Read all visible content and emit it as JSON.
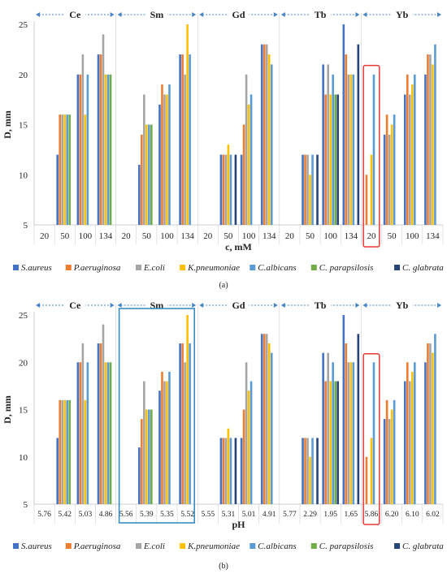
{
  "series": [
    {
      "name": "S.aureus",
      "color": "#4472C4"
    },
    {
      "name": "P.aeruginosa",
      "color": "#ED7D31"
    },
    {
      "name": "E.coli",
      "color": "#A5A5A5"
    },
    {
      "name": "K.pneumoniae",
      "color": "#FFC000"
    },
    {
      "name": "C.albicans",
      "color": "#5B9BD5"
    },
    {
      "name": "C. parapsilosis",
      "color": "#70AD47"
    },
    {
      "name": "C. glabrata",
      "color": "#264478"
    }
  ],
  "highlight_colors": {
    "red": "#E53935",
    "blue": "#2E86C1",
    "arrow": "#4A86C5"
  },
  "chart_data": [
    {
      "type": "bar",
      "panel_label": "(a)",
      "xlabel": "c, mM",
      "ylabel": "D, mm",
      "ylim": [
        5,
        25
      ],
      "yticks": [
        5,
        10,
        15,
        20,
        25
      ],
      "gridlines": false,
      "legend_position": "bottom",
      "groups": [
        {
          "name": "Ce",
          "categories": [
            "20",
            "50",
            "100",
            "134"
          ]
        },
        {
          "name": "Sm",
          "categories": [
            "20",
            "50",
            "100",
            "134"
          ]
        },
        {
          "name": "Gd",
          "categories": [
            "20",
            "50",
            "100",
            "134"
          ]
        },
        {
          "name": "Tb",
          "categories": [
            "20",
            "50",
            "100",
            "134"
          ]
        },
        {
          "name": "Yb",
          "categories": [
            "20",
            "50",
            "100",
            "134"
          ]
        }
      ],
      "highlight": [
        {
          "category_index": 16,
          "color": "red"
        }
      ],
      "values": [
        [
          0,
          0,
          0,
          0,
          0,
          0,
          0
        ],
        [
          12,
          16,
          16,
          16,
          16,
          16,
          0
        ],
        [
          20,
          20,
          22,
          16,
          20,
          0,
          0
        ],
        [
          22,
          22,
          24,
          20,
          20,
          20,
          0
        ],
        [
          0,
          0,
          0,
          0,
          0,
          0,
          0
        ],
        [
          11,
          14,
          18,
          15,
          15,
          15,
          0
        ],
        [
          17,
          19,
          18,
          18,
          19,
          0,
          0
        ],
        [
          22,
          22,
          20,
          25,
          22,
          0,
          0
        ],
        [
          0,
          0,
          0,
          0,
          0,
          0,
          0
        ],
        [
          12,
          12,
          12,
          13,
          12,
          0,
          12
        ],
        [
          12,
          15,
          20,
          17,
          18,
          0,
          0
        ],
        [
          23,
          23,
          23,
          22,
          21,
          0,
          0
        ],
        [
          0,
          0,
          0,
          0,
          0,
          0,
          0
        ],
        [
          12,
          12,
          12,
          10,
          12,
          0,
          12
        ],
        [
          21,
          18,
          21,
          18,
          20,
          18,
          18
        ],
        [
          25,
          22,
          20,
          20,
          20,
          0,
          23
        ],
        [
          0,
          10,
          0,
          12,
          20,
          0,
          0
        ],
        [
          14,
          16,
          14,
          15,
          16,
          0,
          0
        ],
        [
          18,
          20,
          18,
          19,
          20,
          0,
          0
        ],
        [
          20,
          22,
          22,
          21,
          23,
          0,
          0
        ]
      ]
    },
    {
      "type": "bar",
      "panel_label": "(b)",
      "xlabel": "pH",
      "ylabel": "D, mm",
      "ylim": [
        5,
        25
      ],
      "yticks": [
        5,
        10,
        15,
        20,
        25
      ],
      "gridlines": false,
      "legend_position": "bottom",
      "groups": [
        {
          "name": "Ce",
          "categories": [
            "5.76",
            "5.42",
            "5.03",
            "4.86"
          ]
        },
        {
          "name": "Sm",
          "categories": [
            "5.56",
            "5.39",
            "5.35",
            "5.52"
          ]
        },
        {
          "name": "Gd",
          "categories": [
            "5.55",
            "5.31",
            "5.01",
            "4.91"
          ]
        },
        {
          "name": "Tb",
          "categories": [
            "5.77",
            "2.29",
            "1.95",
            "1.65"
          ]
        },
        {
          "name": "Yb",
          "categories": [
            "5.86",
            "6.20",
            "6.10",
            "6.02"
          ]
        }
      ],
      "highlight": [
        {
          "group_index": 1,
          "color": "blue"
        },
        {
          "category_index": 16,
          "color": "red"
        }
      ],
      "values": [
        [
          0,
          0,
          0,
          0,
          0,
          0,
          0
        ],
        [
          12,
          16,
          16,
          16,
          16,
          16,
          0
        ],
        [
          20,
          20,
          22,
          16,
          20,
          0,
          0
        ],
        [
          22,
          22,
          24,
          20,
          20,
          20,
          0
        ],
        [
          0,
          0,
          0,
          0,
          0,
          0,
          0
        ],
        [
          11,
          14,
          18,
          15,
          15,
          15,
          0
        ],
        [
          17,
          19,
          18,
          18,
          19,
          0,
          0
        ],
        [
          22,
          22,
          20,
          25,
          22,
          0,
          0
        ],
        [
          0,
          0,
          0,
          0,
          0,
          0,
          0
        ],
        [
          12,
          12,
          12,
          13,
          12,
          0,
          12
        ],
        [
          12,
          15,
          20,
          17,
          18,
          0,
          0
        ],
        [
          23,
          23,
          23,
          22,
          21,
          0,
          0
        ],
        [
          0,
          0,
          0,
          0,
          0,
          0,
          0
        ],
        [
          12,
          12,
          12,
          10,
          12,
          0,
          12
        ],
        [
          21,
          18,
          21,
          18,
          20,
          18,
          18
        ],
        [
          25,
          22,
          20,
          20,
          20,
          0,
          23
        ],
        [
          0,
          10,
          0,
          12,
          20,
          0,
          0
        ],
        [
          14,
          16,
          14,
          15,
          16,
          0,
          0
        ],
        [
          18,
          20,
          18,
          19,
          20,
          0,
          0
        ],
        [
          20,
          22,
          22,
          21,
          23,
          0,
          0
        ]
      ]
    }
  ]
}
